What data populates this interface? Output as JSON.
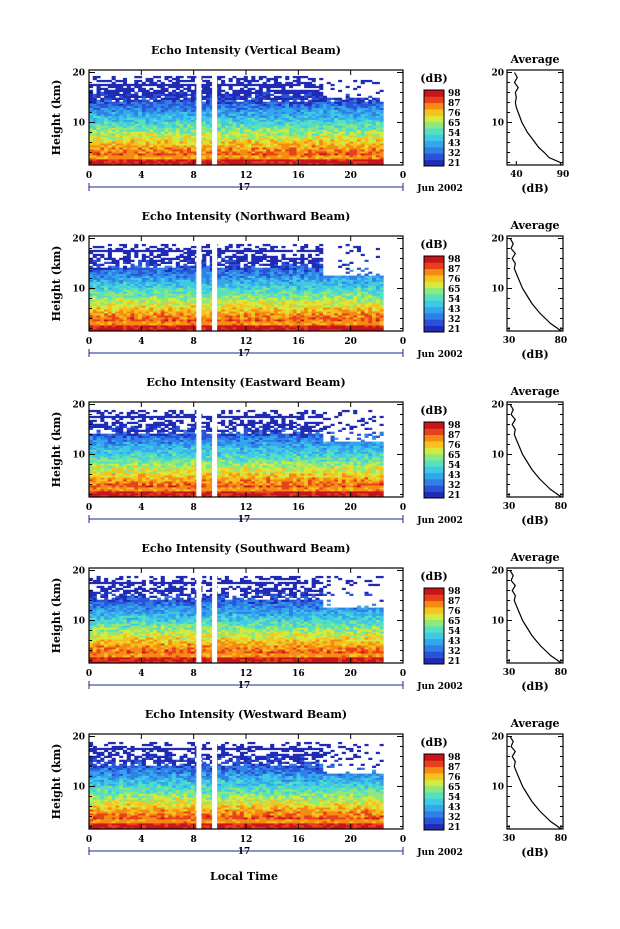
{
  "figure": {
    "xlabel": "Local Time",
    "date_label": "Jun 2002",
    "day_label": "17",
    "unit_label": "(dB)",
    "avg_title": "Average",
    "ylabel": "Height (km)",
    "colorbar_ticks": [
      "98",
      "87",
      "76",
      "65",
      "54",
      "43",
      "32",
      "21"
    ],
    "colormap": [
      "#1f2bb5",
      "#2a52d8",
      "#2f7fe6",
      "#33a6ee",
      "#3fc9e6",
      "#56e0c0",
      "#8ee87a",
      "#d5ea3c",
      "#f7c21e",
      "#f58a14",
      "#e8401a",
      "#c8141a"
    ],
    "gap_color": "#ffffff"
  },
  "chart_data": [
    {
      "type": "heatmap",
      "title": "Echo Intensity (Vertical Beam)",
      "xlabel": "Local Time",
      "ylabel": "Height (km)",
      "x_ticks": [
        "0",
        "4",
        "8",
        "12",
        "16",
        "20",
        "0"
      ],
      "y_ticks": [
        "20",
        "10"
      ],
      "xlim": [
        0,
        24
      ],
      "ylim": [
        1.5,
        20.5
      ],
      "colorbar_ticks": [
        "98",
        "87",
        "76",
        "65",
        "54",
        "43",
        "32",
        "21"
      ],
      "data_gaps_hours": [
        8.4,
        9.6
      ],
      "average": {
        "title": "Average",
        "xlabel": "(dB)",
        "x_ticks": [
          "40",
          "90"
        ],
        "xlim": [
          30,
          90
        ],
        "y_ticks": [
          "20",
          "10"
        ],
        "height_km": [
          1.5,
          2,
          3,
          4,
          5,
          6,
          7,
          8,
          9,
          10,
          11,
          12,
          13,
          14,
          15,
          16,
          17,
          18,
          19,
          20
        ],
        "db": [
          88,
          87,
          75,
          70,
          64,
          60,
          56,
          52,
          49,
          46,
          44,
          42,
          40,
          39,
          40,
          39,
          42,
          38,
          41,
          38
        ]
      }
    },
    {
      "type": "heatmap",
      "title": "Echo Intensity (Northward Beam)",
      "xlabel": "Local Time",
      "ylabel": "Height (km)",
      "x_ticks": [
        "0",
        "4",
        "8",
        "12",
        "16",
        "20",
        "0"
      ],
      "y_ticks": [
        "20",
        "10"
      ],
      "xlim": [
        0,
        24
      ],
      "ylim": [
        1.5,
        20.5
      ],
      "colorbar_ticks": [
        "98",
        "87",
        "76",
        "65",
        "54",
        "43",
        "32",
        "21"
      ],
      "data_gaps_hours": [
        8.4,
        9.6
      ],
      "average": {
        "title": "Average",
        "xlabel": "(dB)",
        "x_ticks": [
          "30",
          "80"
        ],
        "xlim": [
          28,
          82
        ],
        "y_ticks": [
          "20",
          "10"
        ],
        "height_km": [
          1.5,
          2,
          3,
          4,
          5,
          6,
          7,
          8,
          9,
          10,
          11,
          12,
          13,
          14,
          15,
          16,
          17,
          18,
          19,
          20
        ],
        "db": [
          80,
          77,
          70,
          65,
          60,
          56,
          52,
          49,
          46,
          43,
          41,
          39,
          37,
          35,
          36,
          33,
          36,
          32,
          34,
          31
        ]
      }
    },
    {
      "type": "heatmap",
      "title": "Echo Intensity (Eastward Beam)",
      "xlabel": "Local Time",
      "ylabel": "Height (km)",
      "x_ticks": [
        "0",
        "4",
        "8",
        "12",
        "16",
        "20",
        "0"
      ],
      "y_ticks": [
        "20",
        "10"
      ],
      "xlim": [
        0,
        24
      ],
      "ylim": [
        1.5,
        20.5
      ],
      "colorbar_ticks": [
        "98",
        "87",
        "76",
        "65",
        "54",
        "43",
        "32",
        "21"
      ],
      "data_gaps_hours": [
        8.4,
        9.6
      ],
      "average": {
        "title": "Average",
        "xlabel": "(dB)",
        "x_ticks": [
          "30",
          "80"
        ],
        "xlim": [
          28,
          82
        ],
        "y_ticks": [
          "20",
          "10"
        ],
        "height_km": [
          1.5,
          2,
          3,
          4,
          5,
          6,
          7,
          8,
          9,
          10,
          11,
          12,
          13,
          14,
          15,
          16,
          17,
          18,
          19,
          20
        ],
        "db": [
          80,
          77,
          70,
          65,
          60,
          56,
          52,
          49,
          46,
          43,
          41,
          39,
          37,
          35,
          36,
          33,
          36,
          32,
          34,
          31
        ]
      }
    },
    {
      "type": "heatmap",
      "title": "Echo Intensity (Southward Beam)",
      "xlabel": "Local Time",
      "ylabel": "Height (km)",
      "x_ticks": [
        "0",
        "4",
        "8",
        "12",
        "16",
        "20",
        "0"
      ],
      "y_ticks": [
        "20",
        "10"
      ],
      "xlim": [
        0,
        24
      ],
      "ylim": [
        1.5,
        20.5
      ],
      "colorbar_ticks": [
        "98",
        "87",
        "76",
        "65",
        "54",
        "43",
        "32",
        "21"
      ],
      "data_gaps_hours": [
        8.4,
        9.6
      ],
      "average": {
        "title": "Average",
        "xlabel": "(dB)",
        "x_ticks": [
          "30",
          "80"
        ],
        "xlim": [
          28,
          82
        ],
        "y_ticks": [
          "20",
          "10"
        ],
        "height_km": [
          1.5,
          2,
          3,
          4,
          5,
          6,
          7,
          8,
          9,
          10,
          11,
          12,
          13,
          14,
          15,
          16,
          17,
          18,
          19,
          20
        ],
        "db": [
          80,
          77,
          70,
          65,
          60,
          56,
          52,
          49,
          46,
          43,
          41,
          39,
          37,
          35,
          36,
          33,
          36,
          32,
          34,
          31
        ]
      }
    },
    {
      "type": "heatmap",
      "title": "Echo Intensity (Westward Beam)",
      "xlabel": "Local Time",
      "ylabel": "Height (km)",
      "x_ticks": [
        "0",
        "4",
        "8",
        "12",
        "16",
        "20",
        "0"
      ],
      "y_ticks": [
        "20",
        "10"
      ],
      "xlim": [
        0,
        24
      ],
      "ylim": [
        1.5,
        20.5
      ],
      "colorbar_ticks": [
        "98",
        "87",
        "76",
        "65",
        "54",
        "43",
        "32",
        "21"
      ],
      "data_gaps_hours": [
        8.4,
        9.6
      ],
      "average": {
        "title": "Average",
        "xlabel": "(dB)",
        "x_ticks": [
          "30",
          "80"
        ],
        "xlim": [
          28,
          82
        ],
        "y_ticks": [
          "20",
          "10"
        ],
        "height_km": [
          1.5,
          2,
          3,
          4,
          5,
          6,
          7,
          8,
          9,
          10,
          11,
          12,
          13,
          14,
          15,
          16,
          17,
          18,
          19,
          20
        ],
        "db": [
          80,
          77,
          70,
          65,
          60,
          56,
          52,
          49,
          46,
          43,
          41,
          39,
          37,
          35,
          36,
          33,
          36,
          32,
          34,
          31
        ]
      }
    }
  ]
}
